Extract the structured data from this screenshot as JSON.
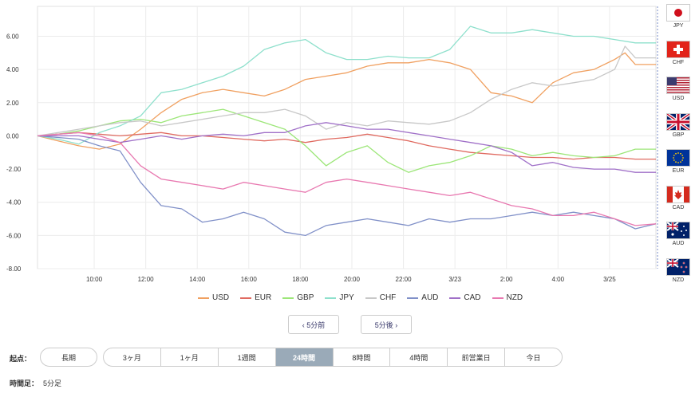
{
  "chart_data": {
    "type": "line",
    "x_ticks": [
      "10:00",
      "12:00",
      "14:00",
      "16:00",
      "18:00",
      "20:00",
      "22:00",
      "3/23",
      "2:00",
      "4:00",
      "3/25"
    ],
    "y_ticks": [
      "6.00",
      "4.00",
      "2.00",
      "0.00",
      "-2.00",
      "-4.00",
      "-6.00",
      "-8.00"
    ],
    "ylim": [
      -8,
      7.8
    ],
    "xlim": [
      0,
      60
    ],
    "grid": true,
    "legend_position": "bottom",
    "series": [
      {
        "name": "USD",
        "color": "#f0a060",
        "points": [
          [
            0,
            0.0
          ],
          [
            2,
            -0.3
          ],
          [
            4,
            -0.6
          ],
          [
            6,
            -0.8
          ],
          [
            8,
            -0.5
          ],
          [
            10,
            0.4
          ],
          [
            12,
            1.4
          ],
          [
            14,
            2.2
          ],
          [
            16,
            2.6
          ],
          [
            18,
            2.8
          ],
          [
            20,
            2.6
          ],
          [
            22,
            2.4
          ],
          [
            24,
            2.8
          ],
          [
            26,
            3.4
          ],
          [
            28,
            3.6
          ],
          [
            30,
            3.8
          ],
          [
            32,
            4.2
          ],
          [
            34,
            4.4
          ],
          [
            36,
            4.4
          ],
          [
            38,
            4.6
          ],
          [
            40,
            4.4
          ],
          [
            42,
            4.0
          ],
          [
            44,
            2.6
          ],
          [
            46,
            2.4
          ],
          [
            48,
            2.0
          ],
          [
            50,
            3.2
          ],
          [
            52,
            3.8
          ],
          [
            54,
            4.0
          ],
          [
            56,
            4.6
          ],
          [
            57,
            5.0
          ],
          [
            58,
            4.3
          ],
          [
            60,
            4.3
          ]
        ]
      },
      {
        "name": "EUR",
        "color": "#e06a60",
        "points": [
          [
            0,
            0.0
          ],
          [
            2,
            0.1
          ],
          [
            4,
            0.2
          ],
          [
            6,
            0.1
          ],
          [
            8,
            0.0
          ],
          [
            10,
            0.1
          ],
          [
            12,
            0.2
          ],
          [
            14,
            0.0
          ],
          [
            16,
            0.0
          ],
          [
            18,
            -0.1
          ],
          [
            20,
            -0.2
          ],
          [
            22,
            -0.3
          ],
          [
            24,
            -0.2
          ],
          [
            26,
            -0.4
          ],
          [
            28,
            -0.2
          ],
          [
            30,
            -0.1
          ],
          [
            32,
            0.1
          ],
          [
            34,
            -0.1
          ],
          [
            36,
            -0.3
          ],
          [
            38,
            -0.6
          ],
          [
            40,
            -0.8
          ],
          [
            42,
            -1.0
          ],
          [
            44,
            -1.1
          ],
          [
            46,
            -1.2
          ],
          [
            48,
            -1.3
          ],
          [
            50,
            -1.3
          ],
          [
            52,
            -1.4
          ],
          [
            54,
            -1.3
          ],
          [
            56,
            -1.3
          ],
          [
            58,
            -1.4
          ],
          [
            60,
            -1.4
          ]
        ]
      },
      {
        "name": "GBP",
        "color": "#9ce678",
        "points": [
          [
            0,
            0.0
          ],
          [
            2,
            0.1
          ],
          [
            4,
            0.3
          ],
          [
            6,
            0.6
          ],
          [
            8,
            0.9
          ],
          [
            10,
            1.0
          ],
          [
            12,
            0.8
          ],
          [
            14,
            1.2
          ],
          [
            16,
            1.4
          ],
          [
            18,
            1.6
          ],
          [
            20,
            1.2
          ],
          [
            22,
            0.8
          ],
          [
            24,
            0.4
          ],
          [
            26,
            -0.6
          ],
          [
            28,
            -1.8
          ],
          [
            30,
            -1.0
          ],
          [
            32,
            -0.6
          ],
          [
            34,
            -1.6
          ],
          [
            36,
            -2.2
          ],
          [
            38,
            -1.8
          ],
          [
            40,
            -1.6
          ],
          [
            42,
            -1.2
          ],
          [
            44,
            -0.6
          ],
          [
            46,
            -0.8
          ],
          [
            48,
            -1.2
          ],
          [
            50,
            -1.0
          ],
          [
            52,
            -1.2
          ],
          [
            54,
            -1.3
          ],
          [
            56,
            -1.2
          ],
          [
            58,
            -0.8
          ],
          [
            60,
            -0.8
          ]
        ]
      },
      {
        "name": "JPY",
        "color": "#8ee0cc",
        "points": [
          [
            0,
            0.0
          ],
          [
            2,
            -0.2
          ],
          [
            4,
            -0.5
          ],
          [
            6,
            0.2
          ],
          [
            8,
            0.6
          ],
          [
            10,
            1.2
          ],
          [
            12,
            2.6
          ],
          [
            14,
            2.8
          ],
          [
            16,
            3.2
          ],
          [
            18,
            3.6
          ],
          [
            20,
            4.2
          ],
          [
            22,
            5.2
          ],
          [
            24,
            5.6
          ],
          [
            26,
            5.8
          ],
          [
            28,
            5.0
          ],
          [
            30,
            4.6
          ],
          [
            32,
            4.6
          ],
          [
            34,
            4.8
          ],
          [
            36,
            4.7
          ],
          [
            38,
            4.7
          ],
          [
            40,
            5.2
          ],
          [
            42,
            6.6
          ],
          [
            44,
            6.2
          ],
          [
            46,
            6.2
          ],
          [
            48,
            6.4
          ],
          [
            50,
            6.2
          ],
          [
            52,
            6.0
          ],
          [
            54,
            6.0
          ],
          [
            56,
            5.8
          ],
          [
            58,
            5.6
          ],
          [
            60,
            5.6
          ]
        ]
      },
      {
        "name": "CHF",
        "color": "#c8c8c8",
        "points": [
          [
            0,
            0.0
          ],
          [
            2,
            0.2
          ],
          [
            4,
            0.4
          ],
          [
            6,
            0.6
          ],
          [
            8,
            0.8
          ],
          [
            10,
            0.9
          ],
          [
            12,
            0.6
          ],
          [
            14,
            0.8
          ],
          [
            16,
            1.0
          ],
          [
            18,
            1.2
          ],
          [
            20,
            1.4
          ],
          [
            22,
            1.4
          ],
          [
            24,
            1.6
          ],
          [
            26,
            1.2
          ],
          [
            28,
            0.4
          ],
          [
            30,
            0.8
          ],
          [
            32,
            0.6
          ],
          [
            34,
            0.9
          ],
          [
            36,
            0.8
          ],
          [
            38,
            0.7
          ],
          [
            40,
            0.9
          ],
          [
            42,
            1.4
          ],
          [
            44,
            2.2
          ],
          [
            46,
            2.8
          ],
          [
            48,
            3.2
          ],
          [
            50,
            3.0
          ],
          [
            52,
            3.2
          ],
          [
            54,
            3.4
          ],
          [
            56,
            4.0
          ],
          [
            57,
            5.4
          ],
          [
            58,
            4.7
          ],
          [
            60,
            4.7
          ]
        ]
      },
      {
        "name": "AUD",
        "color": "#8090c8",
        "points": [
          [
            0,
            0.0
          ],
          [
            2,
            -0.1
          ],
          [
            4,
            -0.2
          ],
          [
            6,
            -0.6
          ],
          [
            8,
            -0.9
          ],
          [
            10,
            -2.8
          ],
          [
            12,
            -4.2
          ],
          [
            14,
            -4.4
          ],
          [
            16,
            -5.2
          ],
          [
            18,
            -5.0
          ],
          [
            20,
            -4.6
          ],
          [
            22,
            -5.0
          ],
          [
            24,
            -5.8
          ],
          [
            26,
            -6.0
          ],
          [
            28,
            -5.4
          ],
          [
            30,
            -5.2
          ],
          [
            32,
            -5.0
          ],
          [
            34,
            -5.2
          ],
          [
            36,
            -5.4
          ],
          [
            38,
            -5.0
          ],
          [
            40,
            -5.2
          ],
          [
            42,
            -5.0
          ],
          [
            44,
            -5.0
          ],
          [
            46,
            -4.8
          ],
          [
            48,
            -4.6
          ],
          [
            50,
            -4.8
          ],
          [
            52,
            -4.6
          ],
          [
            54,
            -4.8
          ],
          [
            56,
            -5.0
          ],
          [
            58,
            -5.6
          ],
          [
            60,
            -5.3
          ]
        ]
      },
      {
        "name": "CAD",
        "color": "#a070c8",
        "points": [
          [
            0,
            0.0
          ],
          [
            2,
            0.0
          ],
          [
            4,
            0.0
          ],
          [
            6,
            -0.2
          ],
          [
            8,
            -0.4
          ],
          [
            10,
            -0.2
          ],
          [
            12,
            0.0
          ],
          [
            14,
            -0.2
          ],
          [
            16,
            0.0
          ],
          [
            18,
            0.1
          ],
          [
            20,
            0.0
          ],
          [
            22,
            0.2
          ],
          [
            24,
            0.2
          ],
          [
            26,
            0.6
          ],
          [
            28,
            0.8
          ],
          [
            30,
            0.6
          ],
          [
            32,
            0.4
          ],
          [
            34,
            0.4
          ],
          [
            36,
            0.2
          ],
          [
            38,
            0.0
          ],
          [
            40,
            -0.2
          ],
          [
            42,
            -0.4
          ],
          [
            44,
            -0.6
          ],
          [
            46,
            -1.0
          ],
          [
            48,
            -1.8
          ],
          [
            50,
            -1.6
          ],
          [
            52,
            -1.9
          ],
          [
            54,
            -2.0
          ],
          [
            56,
            -2.0
          ],
          [
            58,
            -2.2
          ],
          [
            60,
            -2.2
          ]
        ]
      },
      {
        "name": "NZD",
        "color": "#e878b0",
        "points": [
          [
            0,
            0.0
          ],
          [
            2,
            0.1
          ],
          [
            4,
            0.2
          ],
          [
            6,
            0.0
          ],
          [
            8,
            -0.4
          ],
          [
            10,
            -1.8
          ],
          [
            12,
            -2.6
          ],
          [
            14,
            -2.8
          ],
          [
            16,
            -3.0
          ],
          [
            18,
            -3.2
          ],
          [
            20,
            -2.8
          ],
          [
            22,
            -3.0
          ],
          [
            24,
            -3.2
          ],
          [
            26,
            -3.4
          ],
          [
            28,
            -2.8
          ],
          [
            30,
            -2.6
          ],
          [
            32,
            -2.8
          ],
          [
            34,
            -3.0
          ],
          [
            36,
            -3.2
          ],
          [
            38,
            -3.4
          ],
          [
            40,
            -3.6
          ],
          [
            42,
            -3.4
          ],
          [
            44,
            -3.8
          ],
          [
            46,
            -4.2
          ],
          [
            48,
            -4.4
          ],
          [
            50,
            -4.8
          ],
          [
            52,
            -4.8
          ],
          [
            54,
            -4.6
          ],
          [
            56,
            -5.0
          ],
          [
            58,
            -5.4
          ],
          [
            60,
            -5.3
          ]
        ]
      }
    ]
  },
  "flags": [
    {
      "code": "JPY",
      "icon": "japan-flag"
    },
    {
      "code": "CHF",
      "icon": "switzerland-flag"
    },
    {
      "code": "USD",
      "icon": "usa-flag"
    },
    {
      "code": "GBP",
      "icon": "uk-flag"
    },
    {
      "code": "EUR",
      "icon": "eu-flag"
    },
    {
      "code": "CAD",
      "icon": "canada-flag"
    },
    {
      "code": "AUD",
      "icon": "australia-flag"
    },
    {
      "code": "NZD",
      "icon": "newzealand-flag"
    }
  ],
  "nav": {
    "prev": "‹ 5分前",
    "next": "5分後 ›"
  },
  "controls": {
    "start_label": "起点：",
    "long_term": "長期",
    "periods": [
      "3ヶ月",
      "1ヶ月",
      "1週間",
      "24時間",
      "8時間",
      "4時間",
      "前営業日",
      "今日"
    ],
    "active_period": "24時間",
    "timeframe_label": "時間足：",
    "timeframe_value": "5分足"
  }
}
